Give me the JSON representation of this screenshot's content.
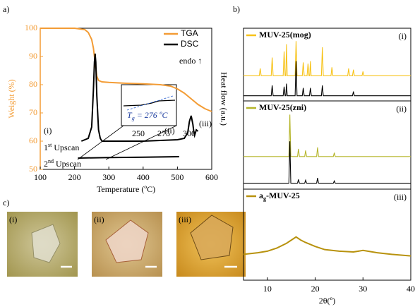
{
  "panels": [
    "a)",
    "b)",
    "c)"
  ],
  "chart_data": [
    {
      "type": "line",
      "xlabel": "Temperature (ºC)",
      "ylabel": "Weight (%)",
      "y2label": "Heat flow (a.u.)",
      "xlim": [
        100,
        600
      ],
      "xticks": [
        100,
        200,
        300,
        400,
        500,
        600
      ],
      "ylim": [
        50,
        100
      ],
      "yticks": [
        50,
        60,
        70,
        80,
        90,
        100
      ],
      "y2lim": [
        50,
        100
      ],
      "legend": "upper right",
      "grid": false,
      "series": [
        {
          "name": "TGA",
          "color": "#f39c35",
          "x": [
            100,
            150,
            200,
            230,
            240,
            250,
            255,
            260,
            265,
            270,
            280,
            300,
            350,
            400,
            450,
            480,
            500,
            520,
            540,
            560,
            580,
            600
          ],
          "values": [
            100,
            100,
            100,
            99.5,
            98.5,
            96,
            93,
            88,
            83,
            81.5,
            81,
            80.8,
            80.5,
            80.3,
            80,
            79.5,
            78.5,
            77,
            75,
            73,
            71.5,
            70.5
          ]
        },
        {
          "name": "DSC",
          "color": "#000000",
          "axis": "y2",
          "x": [
            220,
            240,
            250,
            255,
            258,
            260,
            262,
            265,
            270,
            275,
            280,
            300,
            400,
            500,
            520,
            530,
            535,
            540,
            545,
            548,
            550,
            555,
            560
          ],
          "values": [
            60,
            61,
            65,
            78,
            88,
            91,
            88,
            76,
            64,
            61,
            60,
            60,
            60,
            60.5,
            61,
            63,
            67,
            69,
            66,
            63,
            62,
            64,
            63.5
          ]
        },
        {
          "color": "#000000",
          "axis": "y2",
          "x": [
            210,
            300,
            400,
            505
          ],
          "values": [
            54,
            54.2,
            54.3,
            54.5
          ]
        }
      ],
      "annotations": [
        "(i)",
        "(ii)",
        "(iii)",
        "endo ↑"
      ],
      "upscan_labels": [
        [
          "1",
          "st",
          " Upscan"
        ],
        [
          "2",
          "nd",
          "  Upscan"
        ]
      ],
      "inset": {
        "xticks": [
          250,
          275,
          300
        ],
        "tg_label": [
          "T",
          "g",
          " = 276 ºC"
        ]
      }
    },
    {
      "type": "line",
      "title": "MUV-25(mog)",
      "label": "(i)",
      "xlim": [
        5,
        40
      ],
      "ylim": [
        0,
        100
      ],
      "series": [
        {
          "color": "#f7c31a",
          "x": [
            5,
            8.3,
            8.5,
            8.7,
            10.8,
            11,
            11.2,
            13.3,
            13.5,
            13.7,
            13.85,
            14,
            14.15,
            15.8,
            16,
            16.2,
            17.3,
            17.5,
            17.7,
            18.3,
            18.5,
            18.7,
            18.85,
            19,
            19.15,
            21.3,
            21.5,
            21.7,
            23.3,
            23.5,
            23.7,
            26.8,
            27,
            27.2,
            27.8,
            28,
            28.2,
            29.8,
            30,
            30.2,
            40
          ],
          "values": [
            38,
            38,
            50,
            38,
            38,
            68,
            38,
            38,
            78,
            38,
            38,
            90,
            38,
            38,
            95,
            38,
            38,
            60,
            38,
            38,
            58,
            38,
            38,
            62,
            38,
            38,
            85,
            38,
            38,
            52,
            38,
            38,
            50,
            38,
            38,
            48,
            38,
            38,
            45,
            38,
            38
          ]
        },
        {
          "color": "#000000",
          "x": [
            5,
            10.8,
            11,
            11.2,
            13.3,
            13.5,
            13.7,
            13.85,
            14,
            14.15,
            15.8,
            16,
            16.2,
            17.3,
            17.5,
            17.7,
            18.8,
            19,
            19.2,
            21.3,
            21.5,
            21.7,
            27.8,
            28,
            28.2,
            40
          ],
          "values": [
            5,
            5,
            22,
            5,
            5,
            20,
            5,
            5,
            25,
            5,
            5,
            62,
            5,
            5,
            18,
            5,
            5,
            18,
            5,
            5,
            22,
            5,
            5,
            12,
            5,
            5
          ]
        }
      ]
    },
    {
      "type": "line",
      "title": "MUV-25(zni)",
      "label": "(ii)",
      "xlim": [
        5,
        40
      ],
      "ylim": [
        0,
        100
      ],
      "series": [
        {
          "color": "#b5b52a",
          "x": [
            5,
            14.5,
            14.7,
            14.9,
            16.3,
            16.5,
            16.7,
            17.8,
            18,
            18.2,
            20.3,
            20.5,
            20.7,
            23.8,
            24,
            24.2,
            40
          ],
          "values": [
            40,
            40,
            95,
            40,
            40,
            50,
            40,
            40,
            48,
            40,
            40,
            52,
            40,
            40,
            45,
            40,
            40
          ]
        },
        {
          "color": "#000000",
          "x": [
            5,
            14.5,
            14.7,
            14.9,
            16.3,
            16.5,
            16.7,
            17.8,
            18,
            18.2,
            20.3,
            20.5,
            20.7,
            23.8,
            24,
            24.2,
            40
          ],
          "values": [
            5,
            5,
            60,
            5,
            5,
            10,
            5,
            5,
            9,
            5,
            5,
            12,
            5,
            5,
            8,
            5,
            5
          ]
        }
      ]
    },
    {
      "type": "line",
      "title": [
        "a",
        "g",
        "-MUV-25"
      ],
      "label": "(iii)",
      "xlim": [
        5,
        40
      ],
      "ylim": [
        0,
        100
      ],
      "xticks": [
        10,
        20,
        30,
        40
      ],
      "xlabel": "2θ(º)",
      "series": [
        {
          "color": "#b8920e",
          "x": [
            5,
            8,
            10,
            12,
            14,
            15,
            16,
            17,
            18,
            20,
            22,
            25,
            28,
            30,
            33,
            36,
            40
          ],
          "values": [
            30,
            32,
            34,
            38,
            44,
            48,
            52,
            48,
            45,
            40,
            36,
            34,
            33,
            35,
            32,
            30,
            28
          ]
        }
      ]
    }
  ],
  "photos": {
    "labels": [
      "(i)",
      "(ii)",
      "(iii)"
    ]
  }
}
